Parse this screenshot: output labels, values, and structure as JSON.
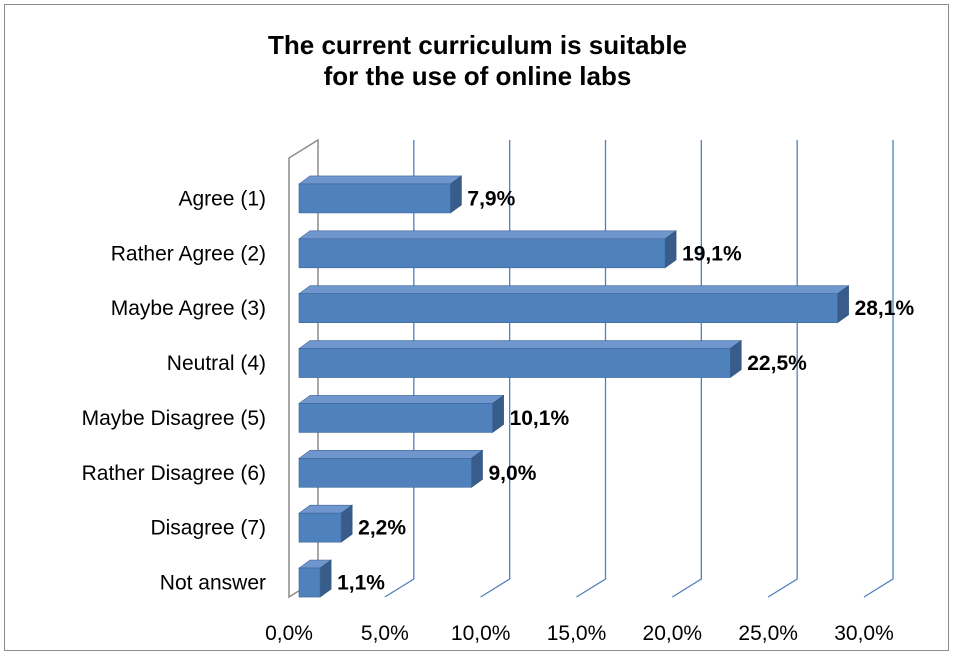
{
  "chart_data": {
    "type": "bar",
    "orientation": "horizontal",
    "style": "3d",
    "title_lines": [
      "The current curriculum is suitable",
      "for the use of online labs"
    ],
    "categories": [
      "Agree (1)",
      "Rather Agree (2)",
      "Maybe Agree (3)",
      "Neutral (4)",
      "Maybe Disagree (5)",
      "Rather Disagree (6)",
      "Disagree (7)",
      "Not answer"
    ],
    "values": [
      7.9,
      19.1,
      28.1,
      22.5,
      10.1,
      9.0,
      2.2,
      1.1
    ],
    "value_labels": [
      "7,9%",
      "19,1%",
      "28,1%",
      "22,5%",
      "10,1%",
      "9,0%",
      "2,2%",
      "1,1%"
    ],
    "x_ticks": [
      "0,0%",
      "5,0%",
      "10,0%",
      "15,0%",
      "20,0%",
      "25,0%",
      "30,0%"
    ],
    "xlim": [
      0,
      30
    ],
    "xlabel": "",
    "ylabel": "",
    "grid": "vertical",
    "legend": "none",
    "colors": {
      "bar_front": "#4f81bd",
      "bar_top": "#6f97cd",
      "bar_side": "#385d8a",
      "gridline": "#4f81bd",
      "axis": "#8c8c8c"
    }
  }
}
